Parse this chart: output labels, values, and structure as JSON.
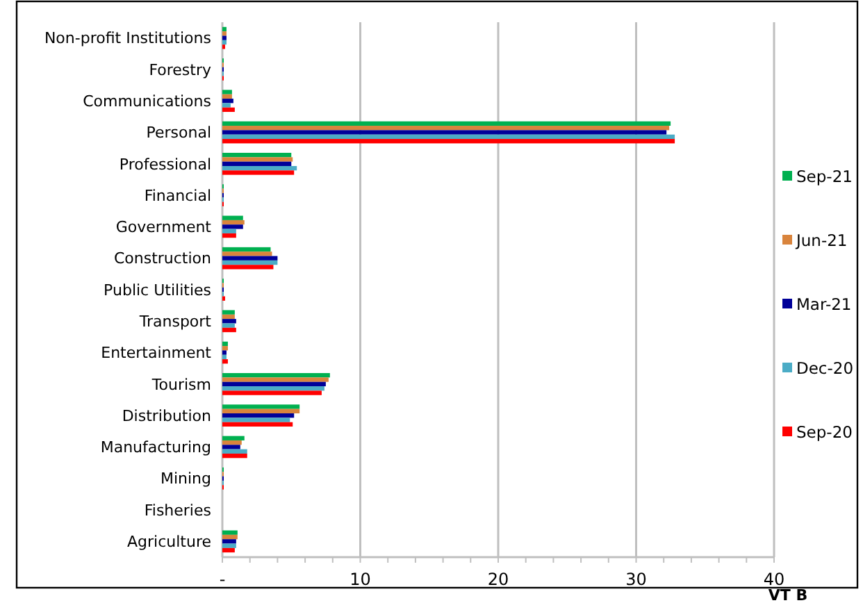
{
  "chart_data": {
    "type": "bar",
    "orientation": "horizontal",
    "xlabel": "VT B",
    "categories": [
      "Non-profit Institutions",
      "Forestry",
      "Communications",
      "Personal",
      "Professional",
      "Financial",
      "Government",
      "Construction",
      "Public Utilities",
      "Transport",
      "Entertainment",
      "Tourism",
      "Distribution",
      "Manufacturing",
      "Mining",
      "Fisheries",
      "Agriculture"
    ],
    "series": [
      {
        "name": "Sep-21",
        "color": "#00b050",
        "values": [
          0.3,
          0.1,
          0.7,
          32.5,
          5.0,
          0.1,
          1.5,
          3.5,
          0.1,
          0.9,
          0.4,
          7.8,
          5.6,
          1.6,
          0.1,
          0,
          1.1
        ]
      },
      {
        "name": "Jun-21",
        "color": "#d9843c",
        "values": [
          0.3,
          0.1,
          0.7,
          32.4,
          5.1,
          0.1,
          1.6,
          3.6,
          0.1,
          0.9,
          0.4,
          7.7,
          5.6,
          1.4,
          0.1,
          0,
          1.1
        ]
      },
      {
        "name": "Mar-21",
        "color": "#000099",
        "values": [
          0.3,
          0.1,
          0.8,
          32.2,
          5.0,
          0.1,
          1.5,
          4.0,
          0.1,
          1.0,
          0.3,
          7.5,
          5.2,
          1.3,
          0.1,
          0,
          1.0
        ]
      },
      {
        "name": "Dec-20",
        "color": "#4bacc6",
        "values": [
          0.3,
          0.1,
          0.6,
          32.8,
          5.4,
          0.1,
          1.0,
          4.0,
          0.1,
          0.9,
          0.3,
          7.4,
          4.9,
          1.8,
          0.1,
          0,
          1.0
        ]
      },
      {
        "name": "Sep-20",
        "color": "#ff0000",
        "values": [
          0.2,
          0.1,
          0.9,
          32.8,
          5.2,
          0.1,
          1.0,
          3.7,
          0.2,
          1.0,
          0.4,
          7.2,
          5.1,
          1.8,
          0.1,
          0,
          0.9
        ]
      }
    ],
    "xlim": [
      0,
      40
    ],
    "xticks": [
      {
        "value": 0,
        "label": "-"
      },
      {
        "value": 2,
        "label": null
      },
      {
        "value": 4,
        "label": null
      },
      {
        "value": 6,
        "label": null
      },
      {
        "value": 8,
        "label": null
      },
      10,
      {
        "value": 12,
        "label": null
      },
      {
        "value": 14,
        "label": null
      },
      {
        "value": 16,
        "label": null
      },
      {
        "value": 18,
        "label": null
      },
      20,
      {
        "value": 22,
        "label": null
      },
      {
        "value": 24,
        "label": null
      },
      {
        "value": 26,
        "label": null
      },
      {
        "value": 28,
        "label": null
      },
      30,
      {
        "value": 32,
        "label": null
      },
      {
        "value": 34,
        "label": null
      },
      {
        "value": 36,
        "label": null
      },
      {
        "value": 38,
        "label": null
      },
      40
    ],
    "grid": "x",
    "legend": "right"
  }
}
